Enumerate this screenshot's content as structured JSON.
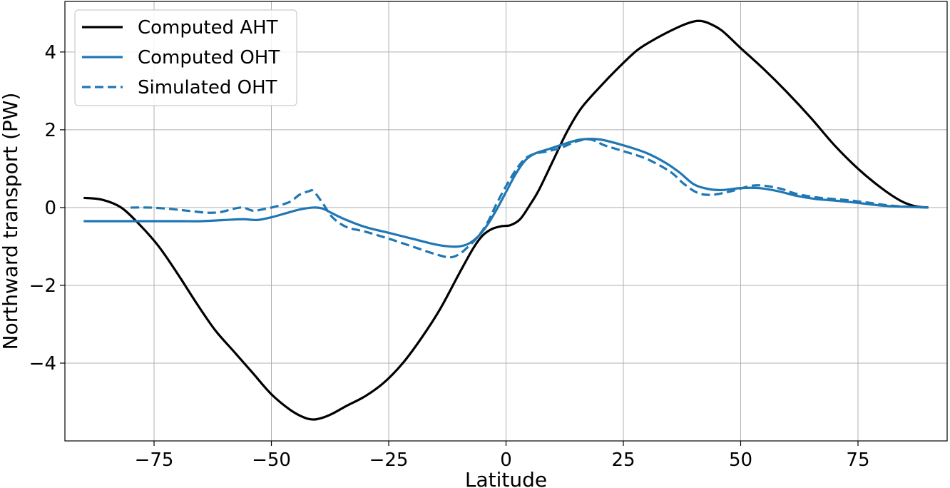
{
  "chart_data": {
    "type": "line",
    "xlabel": "Latitude",
    "ylabel": "Northward transport (PW)",
    "xlim": [
      -94,
      94
    ],
    "ylim": [
      -6.0,
      5.3
    ],
    "xticks": [
      -75,
      -50,
      -25,
      0,
      25,
      50,
      75
    ],
    "yticks": [
      -4,
      -2,
      0,
      2,
      4
    ],
    "xtick_labels": [
      "−75",
      "−50",
      "−25",
      "0",
      "25",
      "50",
      "75"
    ],
    "ytick_labels": [
      "−4",
      "−2",
      "0",
      "2",
      "4"
    ],
    "grid": true,
    "legend_position": "top-left",
    "series": [
      {
        "name": "Computed AHT",
        "color": "#000000",
        "dash": "solid",
        "x": [
          -90,
          -86,
          -82,
          -78,
          -74,
          -70,
          -66,
          -62,
          -58,
          -54,
          -50,
          -46,
          -43,
          -41,
          -39,
          -37,
          -34,
          -30,
          -26,
          -22,
          -18,
          -14,
          -10,
          -7,
          -5,
          -3,
          -1,
          1,
          3,
          5,
          7,
          10,
          13,
          16,
          20,
          24,
          28,
          32,
          36,
          39,
          41,
          43,
          46,
          50,
          55,
          60,
          65,
          70,
          75,
          80,
          84,
          87,
          90
        ],
        "y": [
          0.25,
          0.2,
          0.0,
          -0.45,
          -1.0,
          -1.7,
          -2.45,
          -3.15,
          -3.7,
          -4.25,
          -4.8,
          -5.2,
          -5.4,
          -5.45,
          -5.4,
          -5.3,
          -5.1,
          -4.85,
          -4.5,
          -4.0,
          -3.35,
          -2.6,
          -1.7,
          -1.05,
          -0.72,
          -0.55,
          -0.48,
          -0.45,
          -0.3,
          0.05,
          0.45,
          1.2,
          1.95,
          2.55,
          3.1,
          3.6,
          4.05,
          4.35,
          4.6,
          4.75,
          4.8,
          4.75,
          4.55,
          4.1,
          3.55,
          2.95,
          2.3,
          1.6,
          1.0,
          0.5,
          0.18,
          0.04,
          0.0
        ]
      },
      {
        "name": "Computed OHT",
        "color": "#1f77b4",
        "dash": "solid",
        "x": [
          -90,
          -80,
          -70,
          -65,
          -60,
          -56,
          -53,
          -50,
          -47,
          -44,
          -41,
          -39,
          -37,
          -34,
          -30,
          -25,
          -20,
          -15,
          -12,
          -10,
          -8,
          -6,
          -4,
          -2,
          0,
          2,
          4,
          6,
          9,
          12,
          16,
          20,
          25,
          30,
          34,
          37,
          40,
          43,
          46,
          50,
          54,
          58,
          62,
          66,
          70,
          75,
          80,
          85,
          90
        ],
        "y": [
          -0.35,
          -0.35,
          -0.35,
          -0.35,
          -0.32,
          -0.3,
          -0.32,
          -0.25,
          -0.15,
          -0.05,
          0.0,
          -0.03,
          -0.15,
          -0.32,
          -0.5,
          -0.65,
          -0.8,
          -0.95,
          -1.0,
          -1.0,
          -0.93,
          -0.75,
          -0.45,
          -0.05,
          0.4,
          0.85,
          1.2,
          1.38,
          1.5,
          1.62,
          1.75,
          1.75,
          1.6,
          1.4,
          1.15,
          0.9,
          0.6,
          0.48,
          0.45,
          0.5,
          0.5,
          0.42,
          0.3,
          0.22,
          0.18,
          0.12,
          0.05,
          0.02,
          0.0
        ]
      },
      {
        "name": "Simulated OHT",
        "color": "#1f77b4",
        "dash": "dashed",
        "x": [
          -80,
          -76,
          -72,
          -68,
          -64,
          -61,
          -58,
          -56,
          -54,
          -52,
          -49,
          -46,
          -44,
          -42,
          -41,
          -39,
          -37,
          -34,
          -30,
          -25,
          -20,
          -15,
          -12,
          -10,
          -8,
          -6,
          -4,
          -2,
          0,
          2,
          4,
          6,
          9,
          12,
          15,
          18,
          21,
          25,
          30,
          35,
          38,
          41,
          44,
          48,
          53,
          58,
          62,
          67,
          72,
          77,
          82,
          86,
          90
        ],
        "y": [
          0.0,
          0.0,
          -0.03,
          -0.08,
          -0.13,
          -0.12,
          -0.03,
          0.0,
          -0.08,
          -0.05,
          0.03,
          0.15,
          0.33,
          0.42,
          0.42,
          0.1,
          -0.25,
          -0.5,
          -0.62,
          -0.8,
          -1.0,
          -1.2,
          -1.28,
          -1.2,
          -1.0,
          -0.75,
          -0.4,
          0.1,
          0.55,
          0.95,
          1.25,
          1.38,
          1.45,
          1.55,
          1.7,
          1.75,
          1.6,
          1.45,
          1.25,
          0.92,
          0.6,
          0.37,
          0.33,
          0.42,
          0.57,
          0.5,
          0.35,
          0.25,
          0.2,
          0.13,
          0.05,
          0.02,
          0.0
        ]
      }
    ]
  }
}
